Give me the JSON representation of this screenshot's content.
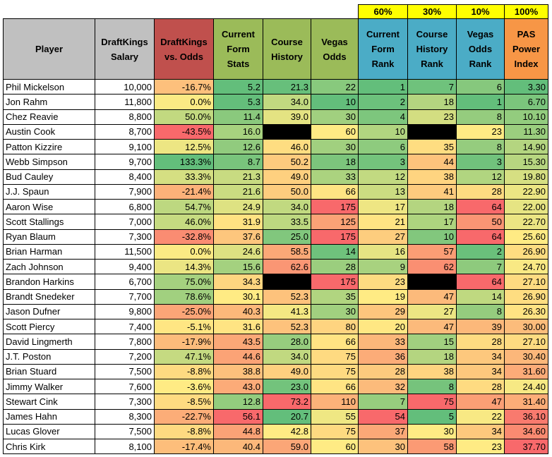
{
  "weights": {
    "form": "60%",
    "history": "30%",
    "odds": "10%",
    "total": "100%"
  },
  "headers": {
    "player": "Player",
    "salary": "DraftKings Salary",
    "dk_vs_odds": "DraftKings vs. Odds",
    "form_stats": "Current Form Stats",
    "course_history": "Course History",
    "vegas_odds": "Vegas Odds",
    "form_rank": "Current Form Rank",
    "history_rank": "Course History Rank",
    "odds_rank": "Vegas Odds Rank",
    "pas": "PAS Power Index"
  },
  "colors": {
    "header_gray": "#c0c0c0",
    "header_red": "#c0504d",
    "header_green": "#9bbb59",
    "header_blue": "#4bacc6",
    "header_orange": "#f79646",
    "weight_yellow": "#ffff00",
    "black_cell": "#000000"
  },
  "rows": [
    {
      "player": "Phil Mickelson",
      "salary": "10,000",
      "dk_vs_odds": "-16.7%",
      "form": "5.2",
      "history": "21.3",
      "odds": "22",
      "form_rank": "1",
      "history_rank": "7",
      "odds_rank": "6",
      "pas": "3.30"
    },
    {
      "player": "Jon Rahm",
      "salary": "11,800",
      "dk_vs_odds": "0.0%",
      "form": "5.3",
      "history": "34.0",
      "odds": "10",
      "form_rank": "2",
      "history_rank": "18",
      "odds_rank": "1",
      "pas": "6.70"
    },
    {
      "player": "Chez Reavie",
      "salary": "8,800",
      "dk_vs_odds": "50.0%",
      "form": "11.4",
      "history": "39.0",
      "odds": "30",
      "form_rank": "4",
      "history_rank": "23",
      "odds_rank": "8",
      "pas": "10.10"
    },
    {
      "player": "Austin Cook",
      "salary": "8,700",
      "dk_vs_odds": "-43.5%",
      "form": "16.0",
      "history": "",
      "odds": "60",
      "form_rank": "10",
      "history_rank": "",
      "odds_rank": "23",
      "pas": "11.30"
    },
    {
      "player": "Patton Kizzire",
      "salary": "9,100",
      "dk_vs_odds": "12.5%",
      "form": "12.6",
      "history": "46.0",
      "odds": "30",
      "form_rank": "6",
      "history_rank": "35",
      "odds_rank": "8",
      "pas": "14.90"
    },
    {
      "player": "Webb Simpson",
      "salary": "9,700",
      "dk_vs_odds": "133.3%",
      "form": "8.7",
      "history": "50.2",
      "odds": "18",
      "form_rank": "3",
      "history_rank": "44",
      "odds_rank": "3",
      "pas": "15.30"
    },
    {
      "player": "Bud Cauley",
      "salary": "8,400",
      "dk_vs_odds": "33.3%",
      "form": "21.3",
      "history": "49.0",
      "odds": "33",
      "form_rank": "12",
      "history_rank": "38",
      "odds_rank": "12",
      "pas": "19.80"
    },
    {
      "player": "J.J. Spaun",
      "salary": "7,900",
      "dk_vs_odds": "-21.4%",
      "form": "21.6",
      "history": "50.0",
      "odds": "66",
      "form_rank": "13",
      "history_rank": "41",
      "odds_rank": "28",
      "pas": "22.90"
    },
    {
      "player": "Aaron Wise",
      "salary": "6,800",
      "dk_vs_odds": "54.7%",
      "form": "24.9",
      "history": "34.0",
      "odds": "175",
      "form_rank": "17",
      "history_rank": "18",
      "odds_rank": "64",
      "pas": "22.00"
    },
    {
      "player": "Scott Stallings",
      "salary": "7,000",
      "dk_vs_odds": "46.0%",
      "form": "31.9",
      "history": "33.5",
      "odds": "125",
      "form_rank": "21",
      "history_rank": "17",
      "odds_rank": "50",
      "pas": "22.70"
    },
    {
      "player": "Ryan Blaum",
      "salary": "7,300",
      "dk_vs_odds": "-32.8%",
      "form": "37.6",
      "history": "25.0",
      "odds": "175",
      "form_rank": "27",
      "history_rank": "10",
      "odds_rank": "64",
      "pas": "25.60"
    },
    {
      "player": "Brian Harman",
      "salary": "11,500",
      "dk_vs_odds": "0.0%",
      "form": "24.6",
      "history": "58.5",
      "odds": "14",
      "form_rank": "16",
      "history_rank": "57",
      "odds_rank": "2",
      "pas": "26.90"
    },
    {
      "player": "Zach Johnson",
      "salary": "9,400",
      "dk_vs_odds": "14.3%",
      "form": "15.6",
      "history": "62.6",
      "odds": "28",
      "form_rank": "9",
      "history_rank": "62",
      "odds_rank": "7",
      "pas": "24.70"
    },
    {
      "player": "Brandon Harkins",
      "salary": "6,700",
      "dk_vs_odds": "75.0%",
      "form": "34.3",
      "history": "",
      "odds": "175",
      "form_rank": "23",
      "history_rank": "",
      "odds_rank": "64",
      "pas": "27.10"
    },
    {
      "player": "Brandt Snedeker",
      "salary": "7,700",
      "dk_vs_odds": "78.6%",
      "form": "30.1",
      "history": "52.3",
      "odds": "35",
      "form_rank": "19",
      "history_rank": "47",
      "odds_rank": "14",
      "pas": "26.90"
    },
    {
      "player": "Jason Dufner",
      "salary": "9,800",
      "dk_vs_odds": "-25.0%",
      "form": "40.3",
      "history": "41.3",
      "odds": "30",
      "form_rank": "29",
      "history_rank": "27",
      "odds_rank": "8",
      "pas": "26.30"
    },
    {
      "player": "Scott Piercy",
      "salary": "7,400",
      "dk_vs_odds": "-5.1%",
      "form": "31.6",
      "history": "52.3",
      "odds": "80",
      "form_rank": "20",
      "history_rank": "47",
      "odds_rank": "39",
      "pas": "30.00"
    },
    {
      "player": "David Lingmerth",
      "salary": "7,800",
      "dk_vs_odds": "-17.9%",
      "form": "43.5",
      "history": "28.0",
      "odds": "66",
      "form_rank": "33",
      "history_rank": "15",
      "odds_rank": "28",
      "pas": "27.10"
    },
    {
      "player": "J.T. Poston",
      "salary": "7,200",
      "dk_vs_odds": "47.1%",
      "form": "44.6",
      "history": "34.0",
      "odds": "75",
      "form_rank": "36",
      "history_rank": "18",
      "odds_rank": "34",
      "pas": "30.40"
    },
    {
      "player": "Brian Stuard",
      "salary": "7,500",
      "dk_vs_odds": "-8.8%",
      "form": "38.8",
      "history": "49.0",
      "odds": "75",
      "form_rank": "28",
      "history_rank": "38",
      "odds_rank": "34",
      "pas": "31.60"
    },
    {
      "player": "Jimmy Walker",
      "salary": "7,600",
      "dk_vs_odds": "-3.6%",
      "form": "43.0",
      "history": "23.0",
      "odds": "66",
      "form_rank": "32",
      "history_rank": "8",
      "odds_rank": "28",
      "pas": "24.40"
    },
    {
      "player": "Stewart Cink",
      "salary": "7,300",
      "dk_vs_odds": "-8.5%",
      "form": "12.8",
      "history": "73.2",
      "odds": "110",
      "form_rank": "7",
      "history_rank": "75",
      "odds_rank": "47",
      "pas": "31.40"
    },
    {
      "player": "James Hahn",
      "salary": "8,300",
      "dk_vs_odds": "-22.7%",
      "form": "56.1",
      "history": "20.7",
      "odds": "55",
      "form_rank": "54",
      "history_rank": "5",
      "odds_rank": "22",
      "pas": "36.10"
    },
    {
      "player": "Lucas Glover",
      "salary": "7,500",
      "dk_vs_odds": "-8.8%",
      "form": "44.8",
      "history": "42.8",
      "odds": "75",
      "form_rank": "37",
      "history_rank": "30",
      "odds_rank": "34",
      "pas": "34.60"
    },
    {
      "player": "Chris Kirk",
      "salary": "8,100",
      "dk_vs_odds": "-17.4%",
      "form": "40.4",
      "history": "59.0",
      "odds": "60",
      "form_rank": "30",
      "history_rank": "58",
      "odds_rank": "23",
      "pas": "37.70"
    }
  ]
}
